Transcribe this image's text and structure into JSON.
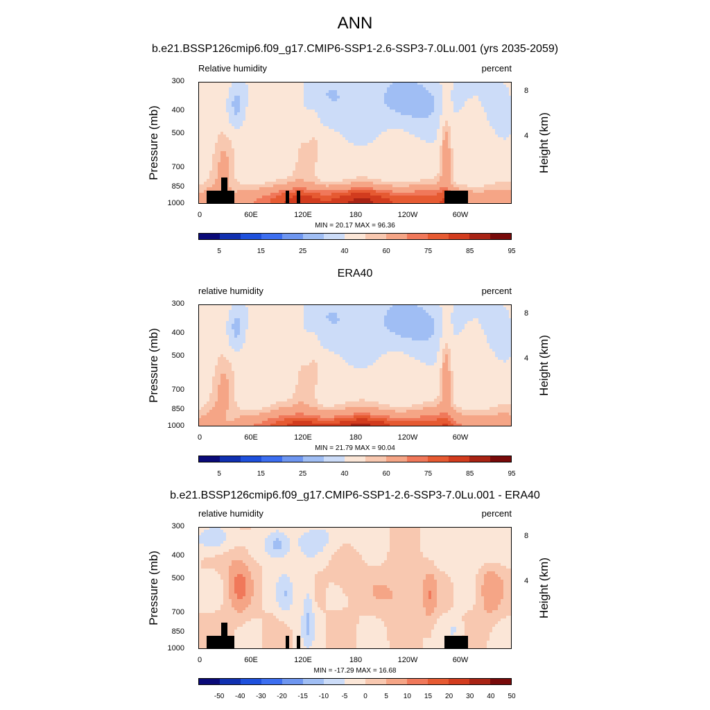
{
  "main_title": "ANN",
  "panels": [
    {
      "title": "b.e21.BSSP126cmip6.f09_g17.CMIP6-SSP1-2.6-SSP3-7.0Lu.001 (yrs 2035-2059)",
      "left_label": "Relative humidity",
      "right_label": "percent",
      "minmax": "MIN = 20.17 MAX = 96.36"
    },
    {
      "title": "ERA40",
      "left_label": "relative humidity",
      "right_label": "percent",
      "minmax": "MIN = 21.79 MAX = 90.04"
    },
    {
      "title": "b.e21.BSSP126cmip6.f09_g17.CMIP6-SSP1-2.6-SSP3-7.0Lu.001 - ERA40",
      "left_label": "relative humidity",
      "right_label": "percent",
      "minmax": "MIN = -17.29 MAX = 16.68"
    }
  ],
  "axes": {
    "ylabel": "Pressure (mb)",
    "ylabel_right": "Height (km)",
    "yticks": [
      "300",
      "400",
      "500",
      "700",
      "850",
      "1000"
    ],
    "yticks_right": [
      "8",
      "4"
    ],
    "xticks": [
      "0",
      "60E",
      "120E",
      "180",
      "120W",
      "60W"
    ]
  },
  "colorbars": {
    "abs_labels": [
      "5",
      "15",
      "25",
      "40",
      "60",
      "75",
      "85",
      "95"
    ],
    "diff_labels": [
      "-50",
      "-40",
      "-30",
      "-20",
      "-15",
      "-10",
      "-5",
      "0",
      "5",
      "10",
      "15",
      "20",
      "30",
      "40",
      "50"
    ],
    "colors": [
      "#0a0a78",
      "#1030b0",
      "#1e50dc",
      "#3c6ef0",
      "#6e96f0",
      "#a0bef4",
      "#ccdcf8",
      "#fbe6d7",
      "#f8c8b0",
      "#f5a586",
      "#f0785a",
      "#e65a32",
      "#d23c1e",
      "#a82314",
      "#780a0a"
    ]
  },
  "chart_data": [
    {
      "type": "heatmap",
      "title": "b.e21.BSSP126cmip6.f09_g17.CMIP6-SSP1-2.6-SSP3-7.0Lu.001 (yrs 2035-2059)",
      "xlabel": "",
      "ylabel": "Pressure (mb)",
      "xlim": [
        0,
        360
      ],
      "ylim": [
        1000,
        300
      ],
      "min": 20.17,
      "max": 96.36,
      "contour_levels": [
        5,
        15,
        25,
        40,
        60,
        75,
        85,
        95
      ]
    },
    {
      "type": "heatmap",
      "title": "ERA40",
      "xlabel": "",
      "ylabel": "Pressure (mb)",
      "xlim": [
        0,
        360
      ],
      "ylim": [
        1000,
        300
      ],
      "min": 21.79,
      "max": 90.04,
      "contour_levels": [
        5,
        15,
        25,
        40,
        60,
        75,
        85,
        95
      ]
    },
    {
      "type": "heatmap",
      "title": "b.e21.BSSP126cmip6.f09_g17.CMIP6-SSP1-2.6-SSP3-7.0Lu.001 - ERA40",
      "xlabel": "",
      "ylabel": "Pressure (mb)",
      "xlim": [
        0,
        360
      ],
      "ylim": [
        1000,
        300
      ],
      "min": -17.29,
      "max": 16.68,
      "contour_levels": [
        -50,
        -40,
        -30,
        -20,
        -15,
        -10,
        -5,
        0,
        5,
        10,
        15,
        20,
        30,
        40,
        50
      ]
    }
  ]
}
